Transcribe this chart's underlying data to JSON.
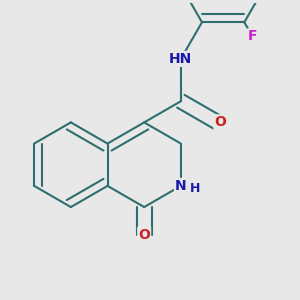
{
  "background_color": "#e8e8e8",
  "bond_color": "#2d6e6e",
  "bond_width": 1.5,
  "atom_colors": {
    "N": "#1a1aaa",
    "O": "#cc2222",
    "F": "#cc22cc",
    "C": "#2d6e6e"
  },
  "font_size": 10,
  "font_size_small": 9
}
